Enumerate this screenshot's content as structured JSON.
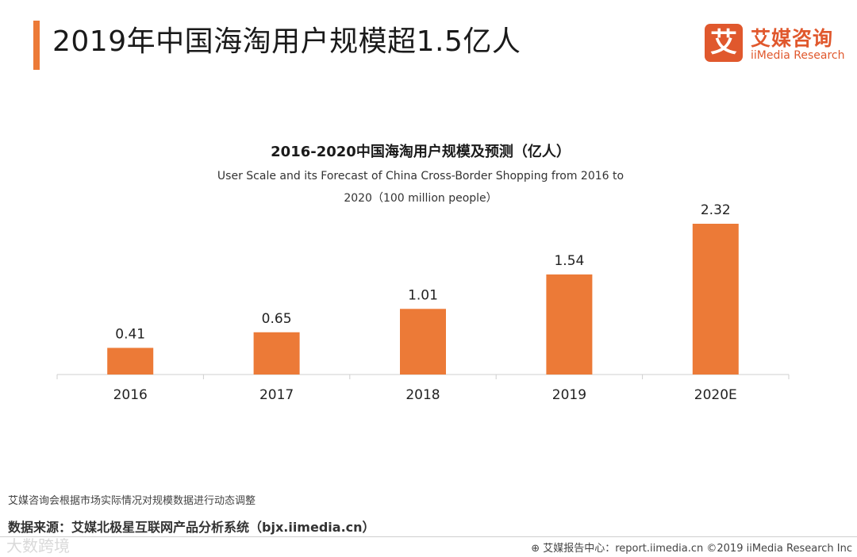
{
  "header": {
    "title": "2019年中国海淘用户规模超1.5亿人"
  },
  "brand": {
    "logo_char": "艾",
    "name_cn": "艾媒咨询",
    "name_en": "iiMedia Research",
    "color": "#e0582d"
  },
  "chart_data": {
    "type": "bar",
    "title": "2016-2020中国海淘用户规模及预测（亿人）",
    "subtitle_line1": "User Scale and its Forecast of China Cross-Border Shopping from 2016 to",
    "subtitle_line2": "2020（100 million people）",
    "categories": [
      "2016",
      "2017",
      "2018",
      "2019",
      "2020E"
    ],
    "values": [
      0.41,
      0.65,
      1.01,
      1.54,
      2.32
    ],
    "value_labels": [
      "0.41",
      "0.65",
      "1.01",
      "1.54",
      "2.32"
    ],
    "xlabel": "",
    "ylabel": "",
    "ylim": [
      0,
      2.32
    ],
    "bar_color": "#ec7a37",
    "grid": false
  },
  "footer": {
    "note": "艾媒咨询会根据市场实际情况对规模数据进行动态调整",
    "source": "数据来源：艾媒北极星互联网产品分析系统（bjx.iimedia.cn）",
    "report_center": "艾媒报告中心：report.iimedia.cn  ©2019  iiMedia Research  Inc",
    "watermark": "大数跨境"
  }
}
